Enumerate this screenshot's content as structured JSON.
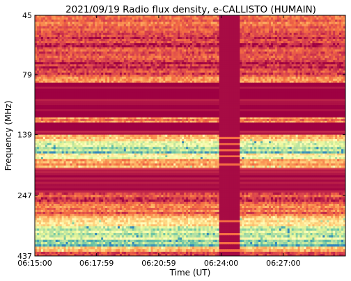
{
  "chart_data": {
    "type": "heatmap",
    "title": "2021/09/19  Radio flux density, e-CALLISTO (HUMAIN)",
    "xlabel": "Time (UT)",
    "ylabel": "Frequency (MHz)",
    "x_ticks": [
      "06:15:00",
      "06:17:59",
      "06:20:59",
      "06:24:00",
      "06:27:00"
    ],
    "y_ticks": [
      "45",
      "79",
      "139",
      "247",
      "437"
    ],
    "y_scale": "log",
    "y_inverted": true,
    "xlim": [
      "06:15:00",
      "06:30:00"
    ],
    "ylim": [
      45,
      437
    ],
    "colormap": "Spectral",
    "colors": {
      "low": "#9e0142",
      "mid_low": "#f46d43",
      "mid": "#ffffbf",
      "mid_high": "#abdda4",
      "high": "#3288bd"
    },
    "gap_interval": [
      "06:23:52",
      "06:24:52"
    ],
    "bands": [
      {
        "f_from": 45,
        "f_to": 52,
        "level": 0.22
      },
      {
        "f_from": 52,
        "f_to": 70,
        "level": 0.14
      },
      {
        "f_from": 70,
        "f_to": 79,
        "level": 0.1
      },
      {
        "f_from": 79,
        "f_to": 85,
        "level": 0.25
      },
      {
        "f_from": 85,
        "f_to": 118,
        "level": 0.0
      },
      {
        "f_from": 118,
        "f_to": 124,
        "level": 0.28
      },
      {
        "f_from": 124,
        "f_to": 139,
        "level": 0.02
      },
      {
        "f_from": 139,
        "f_to": 148,
        "level": 0.46
      },
      {
        "f_from": 148,
        "f_to": 156,
        "level": 0.62
      },
      {
        "f_from": 156,
        "f_to": 166,
        "level": 0.82
      },
      {
        "f_from": 166,
        "f_to": 175,
        "level": 0.6
      },
      {
        "f_from": 175,
        "f_to": 190,
        "level": 0.35
      },
      {
        "f_from": 190,
        "f_to": 196,
        "level": 0.05
      },
      {
        "f_from": 196,
        "f_to": 240,
        "level": 0.0
      },
      {
        "f_from": 240,
        "f_to": 262,
        "level": 0.16
      },
      {
        "f_from": 262,
        "f_to": 300,
        "level": 0.24
      },
      {
        "f_from": 300,
        "f_to": 330,
        "level": 0.48
      },
      {
        "f_from": 330,
        "f_to": 375,
        "level": 0.72
      },
      {
        "f_from": 375,
        "f_to": 400,
        "level": 0.88
      },
      {
        "f_from": 400,
        "f_to": 420,
        "level": 0.42
      },
      {
        "f_from": 420,
        "f_to": 437,
        "level": 0.12
      }
    ]
  }
}
